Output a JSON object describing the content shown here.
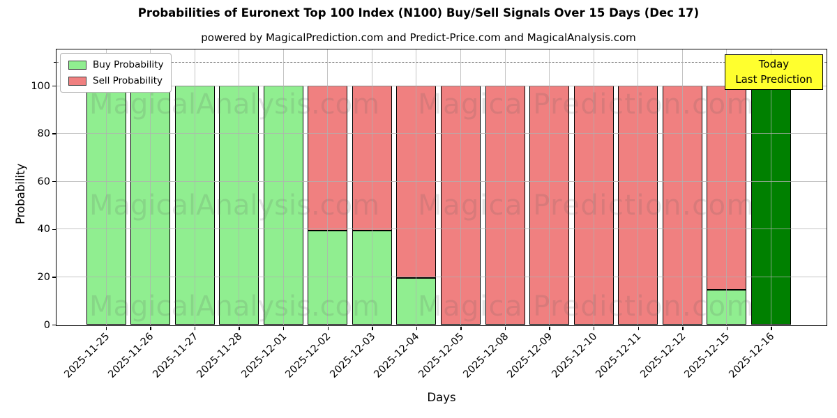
{
  "title": "Probabilities of Euronext Top 100 Index (N100) Buy/Sell Signals Over 15 Days (Dec 17)",
  "subtitle": "powered by MagicalPrediction.com and Predict-Price.com and MagicalAnalysis.com",
  "axes": {
    "xlabel": "Days",
    "ylabel": "Probability",
    "yticks": [
      0,
      20,
      40,
      60,
      80,
      100
    ],
    "ylim": [
      0,
      116
    ],
    "grid": true,
    "dashed_line_y": 110
  },
  "legend": {
    "position": "upper left",
    "items": [
      {
        "label": "Buy Probability",
        "color": "#90ee90"
      },
      {
        "label": "Sell Probability",
        "color": "#f08080"
      }
    ]
  },
  "annotation": {
    "line1": "Today",
    "line2": "Last Prediction",
    "bg_color": "#ffff2e"
  },
  "watermarks": {
    "left_text": "MagicalAnalysis.com",
    "right_text": "Magica Prediction.com"
  },
  "colors": {
    "buy": "#90ee90",
    "sell": "#f08080",
    "today_bar": "#008000",
    "bar_edge": "#000000"
  },
  "chart_data": {
    "type": "bar",
    "stacked": true,
    "title": "Probabilities of Euronext Top 100 Index (N100) Buy/Sell Signals Over 15 Days (Dec 17)",
    "xlabel": "Days",
    "ylabel": "Probability",
    "ylim": [
      0,
      116
    ],
    "grid": true,
    "legend_position": "upper left",
    "categories": [
      "2025-11-25",
      "2025-11-26",
      "2025-11-27",
      "2025-11-28",
      "2025-12-01",
      "2025-12-02",
      "2025-12-03",
      "2025-12-04",
      "2025-12-05",
      "2025-12-08",
      "2025-12-09",
      "2025-12-10",
      "2025-12-11",
      "2025-12-12",
      "2025-12-15",
      "2025-12-16"
    ],
    "series": [
      {
        "name": "Buy Probability",
        "color": "#90ee90",
        "values": [
          100,
          100,
          100,
          100,
          100,
          39.5,
          39.5,
          19.5,
          0,
          0,
          0,
          0,
          0,
          0,
          14.5,
          100
        ]
      },
      {
        "name": "Sell Probability",
        "color": "#f08080",
        "values": [
          0,
          0,
          0,
          0,
          0,
          60.5,
          60.5,
          80.5,
          100,
          100,
          100,
          100,
          100,
          100,
          85.5,
          0
        ]
      }
    ],
    "today_bar": {
      "category": "2025-12-16",
      "index": 15,
      "color": "#008000",
      "note": "Today / Last Prediction"
    }
  }
}
